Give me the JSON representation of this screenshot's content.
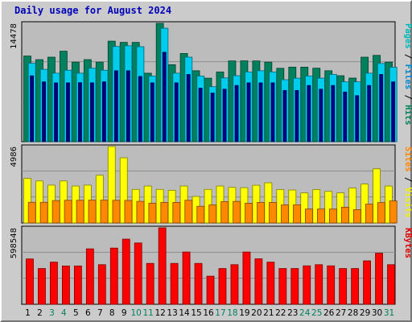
{
  "chart_data": {
    "title": "Daily usage for August 2024",
    "type": "bar",
    "days": [
      "1",
      "2",
      "3",
      "4",
      "5",
      "6",
      "7",
      "8",
      "9",
      "10",
      "11",
      "12",
      "13",
      "14",
      "15",
      "16",
      "17",
      "18",
      "19",
      "20",
      "21",
      "22",
      "23",
      "24",
      "25",
      "26",
      "27",
      "28",
      "29",
      "30",
      "31"
    ],
    "weekend_days": [
      "3",
      "4",
      "10",
      "11",
      "17",
      "18",
      "24",
      "25",
      "31"
    ],
    "panels": [
      {
        "id": "hits-files-pages",
        "ymax_label": "14478",
        "ymax": 14478,
        "legend": [
          {
            "text": "Pages",
            "color": "#00b8b8"
          },
          {
            "text": " / ",
            "color": "#000000"
          },
          {
            "text": "Files",
            "color": "#0088cc"
          },
          {
            "text": " / ",
            "color": "#000000"
          },
          {
            "text": "Hits",
            "color": "#00805c"
          }
        ],
        "series": [
          {
            "name": "Hits",
            "color": "#00805c",
            "values": [
              10480,
              10040,
              10340,
              11070,
              9730,
              10040,
              9730,
              12300,
              12150,
              12150,
              8380,
              14478,
              9420,
              10790,
              8680,
              7770,
              8530,
              9880,
              9890,
              9880,
              9730,
              8980,
              9120,
              9120,
              8990,
              8680,
              8070,
              7780,
              10340,
              10560,
              9730
            ]
          },
          {
            "name": "Files",
            "color": "#00ccee",
            "values": [
              9600,
              8850,
              8380,
              8740,
              8380,
              8990,
              8740,
              11650,
              11730,
              11620,
              8030,
              13880,
              8380,
              10340,
              8030,
              6730,
              7800,
              8070,
              8530,
              8680,
              8530,
              7580,
              7770,
              8030,
              7770,
              8220,
              7320,
              7320,
              8380,
              9570,
              9100
            ]
          },
          {
            "name": "Pages",
            "color": "#000088",
            "values": [
              8060,
              7320,
              7190,
              7200,
              7220,
              7200,
              7320,
              8680,
              8680,
              7980,
              7200,
              10940,
              7200,
              8220,
              6550,
              5950,
              6420,
              6880,
              7200,
              7200,
              7200,
              6270,
              6270,
              6880,
              6420,
              6880,
              6080,
              5630,
              6880,
              8220,
              7320
            ]
          }
        ]
      },
      {
        "id": "visits-sites",
        "ymax_label": "4986",
        "ymax": 4986,
        "legend": [
          {
            "text": "Sites",
            "color": "#ff8800"
          },
          {
            "text": " / ",
            "color": "#000000"
          },
          {
            "text": "Visits",
            "color": "#f0f000"
          }
        ],
        "series": [
          {
            "name": "Visits",
            "color": "#ffff00",
            "values": [
              2910,
              2740,
              2470,
              2740,
              2410,
              2470,
              3110,
              4986,
              4250,
              2190,
              2410,
              2190,
              2130,
              2410,
              1730,
              2190,
              2410,
              2320,
              2300,
              2460,
              2620,
              2180,
              2150,
              1960,
              2180,
              2060,
              1960,
              2280,
              2540,
              3530,
              2410
            ]
          },
          {
            "name": "Sites",
            "color": "#ff8800",
            "values": [
              1350,
              1350,
              1460,
              1480,
              1480,
              1490,
              1490,
              1480,
              1470,
              1410,
              1290,
              1340,
              1340,
              1480,
              1090,
              1180,
              1390,
              1410,
              1290,
              1340,
              1340,
              1180,
              1180,
              910,
              910,
              910,
              1030,
              870,
              1230,
              1330,
              1440
            ]
          }
        ]
      },
      {
        "id": "kbytes",
        "ymax_label": "598548",
        "ymax": 598548,
        "legend": [
          {
            "text": "KBytes",
            "color": "#e00000"
          }
        ],
        "series": [
          {
            "name": "KBytes",
            "color": "#ff0000",
            "values": [
              355000,
              280000,
              330000,
              300000,
              300000,
              434000,
              310000,
              440000,
              510000,
              480000,
              320000,
              598548,
              320000,
              409000,
              320000,
              220000,
              280000,
              310000,
              409000,
              356000,
              330000,
              280000,
              280000,
              301000,
              310000,
              301000,
              280000,
              280000,
              340000,
              400000,
              310000
            ]
          }
        ]
      }
    ]
  }
}
